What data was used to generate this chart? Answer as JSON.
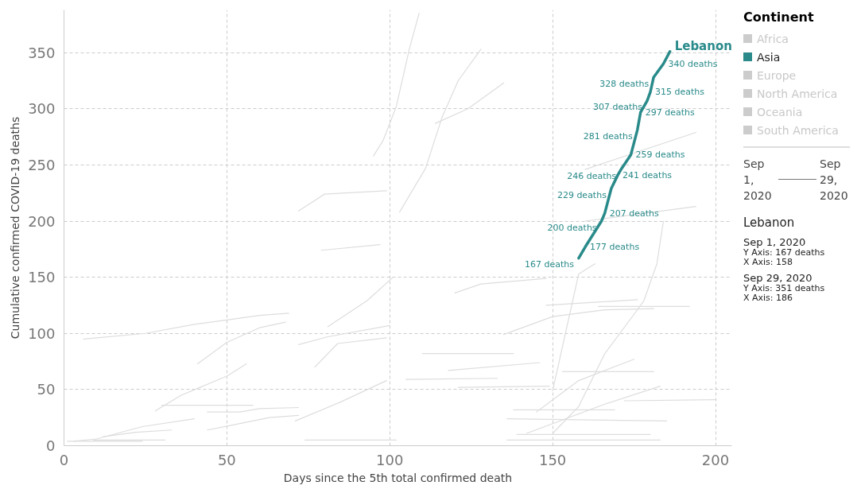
{
  "chart_data": {
    "type": "line",
    "xlabel": "Days since the 5th total confirmed death",
    "ylabel": "Cumulative confirmed COVID-19 deaths",
    "legend_title": "Continent",
    "xlim": [
      0,
      205
    ],
    "ylim": [
      0,
      388
    ],
    "xticks": [
      0,
      50,
      100,
      150,
      200
    ],
    "yticks": [
      0,
      50,
      100,
      150,
      200,
      250,
      300,
      350
    ],
    "grid": true,
    "legend": "right",
    "series": [
      {
        "color": "#dddddd",
        "x": [
          6,
          25,
          40,
          50,
          60,
          69
        ],
        "values": [
          95,
          100,
          108,
          112,
          116,
          118
        ]
      },
      {
        "color": "#dddddd",
        "x": [
          41,
          50,
          60,
          68
        ],
        "values": [
          73,
          92,
          105,
          110
        ]
      },
      {
        "color": "#dddddd",
        "x": [
          28,
          36,
          50,
          56
        ],
        "values": [
          31,
          45,
          62,
          73
        ]
      },
      {
        "color": "#dddddd",
        "x": [
          30,
          58
        ],
        "values": [
          36,
          36
        ]
      },
      {
        "color": "#dddddd",
        "x": [
          44,
          54,
          60,
          72
        ],
        "values": [
          30,
          30,
          33,
          34
        ]
      },
      {
        "color": "#dddddd",
        "x": [
          44,
          51,
          63,
          72
        ],
        "values": [
          14,
          18,
          25,
          27
        ]
      },
      {
        "color": "#dddddd",
        "x": [
          3,
          10,
          24,
          40
        ],
        "values": [
          4,
          6,
          17,
          24
        ]
      },
      {
        "color": "#dddddd",
        "x": [
          12,
          22,
          33
        ],
        "values": [
          8,
          12,
          14
        ]
      },
      {
        "color": "#dddddd",
        "x": [
          1,
          24
        ],
        "values": [
          4,
          4
        ]
      },
      {
        "color": "#dddddd",
        "x": [
          9,
          31
        ],
        "values": [
          5,
          5
        ]
      },
      {
        "color": "#dddddd",
        "x": [
          72,
          81,
          100
        ],
        "values": [
          90,
          97,
          107
        ]
      },
      {
        "color": "#dddddd",
        "x": [
          77,
          84,
          99
        ],
        "values": [
          70,
          91,
          96
        ]
      },
      {
        "color": "#dddddd",
        "x": [
          81,
          93,
          101
        ],
        "values": [
          106,
          129,
          150
        ]
      },
      {
        "color": "#dddddd",
        "x": [
          79,
          97
        ],
        "values": [
          174,
          179
        ]
      },
      {
        "color": "#dddddd",
        "x": [
          71,
          85,
          99
        ],
        "values": [
          22,
          39,
          58
        ]
      },
      {
        "color": "#dddddd",
        "x": [
          74,
          102
        ],
        "values": [
          5,
          5
        ]
      },
      {
        "color": "#dddddd",
        "x": [
          95,
          98,
          102,
          106,
          109
        ],
        "values": [
          258,
          272,
          302,
          353,
          385
        ]
      },
      {
        "color": "#dddddd",
        "x": [
          103,
          111,
          116,
          121,
          128
        ],
        "values": [
          208,
          247,
          292,
          325,
          353
        ]
      },
      {
        "color": "#dddddd",
        "x": [
          72,
          80,
          99
        ],
        "values": [
          209,
          224,
          227
        ]
      },
      {
        "color": "#dddddd",
        "x": [
          114,
          124,
          135
        ],
        "values": [
          287,
          300,
          323
        ]
      },
      {
        "color": "#dddddd",
        "x": [
          120,
          128,
          148
        ],
        "values": [
          136,
          144,
          149
        ]
      },
      {
        "color": "#dddddd",
        "x": [
          148,
          176
        ],
        "values": [
          125,
          130
        ]
      },
      {
        "color": "#dddddd",
        "x": [
          164,
          192
        ],
        "values": [
          124,
          124
        ]
      },
      {
        "color": "#dddddd",
        "x": [
          135,
          150,
          166,
          181
        ],
        "values": [
          99,
          115,
          121,
          122
        ]
      },
      {
        "color": "#dddddd",
        "x": [
          110,
          138
        ],
        "values": [
          82,
          82
        ]
      },
      {
        "color": "#dddddd",
        "x": [
          118,
          146
        ],
        "values": [
          67,
          74
        ]
      },
      {
        "color": "#dddddd",
        "x": [
          105,
          133
        ],
        "values": [
          59,
          60
        ]
      },
      {
        "color": "#dddddd",
        "x": [
          121,
          149
        ],
        "values": [
          52,
          53
        ]
      },
      {
        "color": "#dddddd",
        "x": [
          150,
          158,
          166,
          175,
          178,
          182,
          184
        ],
        "values": [
          11,
          35,
          82,
          117,
          129,
          162,
          200
        ]
      },
      {
        "color": "#dddddd",
        "x": [
          150,
          158,
          163
        ],
        "values": [
          49,
          153,
          162
        ]
      },
      {
        "color": "#dddddd",
        "x": [
          136,
          183
        ],
        "values": [
          5,
          5
        ]
      },
      {
        "color": "#dddddd",
        "x": [
          139,
          180
        ],
        "values": [
          10,
          10
        ]
      },
      {
        "color": "#dddddd",
        "x": [
          136,
          185
        ],
        "values": [
          24,
          22
        ]
      },
      {
        "color": "#dddddd",
        "x": [
          138,
          169
        ],
        "values": [
          32,
          32
        ]
      },
      {
        "color": "#dddddd",
        "x": [
          153,
          181
        ],
        "values": [
          66,
          66
        ]
      },
      {
        "color": "#dddddd",
        "x": [
          172,
          200
        ],
        "values": [
          40,
          41
        ]
      },
      {
        "color": "#dddddd",
        "x": [
          142,
          166,
          183
        ],
        "values": [
          11,
          37,
          53
        ]
      },
      {
        "color": "#dddddd",
        "x": [
          145,
          158,
          175
        ],
        "values": [
          30,
          58,
          77
        ]
      },
      {
        "color": "#dddddd",
        "x": [
          160,
          194
        ],
        "values": [
          200,
          213
        ]
      },
      {
        "color": "#dddddd",
        "x": [
          160,
          194
        ],
        "values": [
          246,
          279
        ]
      },
      {
        "name": "Lebanon",
        "color": "#2a8a8a",
        "x": [
          158,
          160,
          165,
          166,
          168,
          170,
          171,
          174,
          176,
          177,
          179,
          180,
          181,
          184,
          186
        ],
        "values": [
          167,
          177,
          200,
          207,
          229,
          241,
          246,
          259,
          281,
          297,
          307,
          315,
          328,
          340,
          351
        ],
        "value_labels": [
          "167 deaths",
          "177 deaths",
          "200 deaths",
          "207 deaths",
          "229 deaths",
          "241 deaths",
          "246 deaths",
          "259 deaths",
          "281 deaths",
          "297 deaths",
          "307 deaths",
          "315 deaths",
          "328 deaths",
          "340 deaths",
          null
        ]
      }
    ],
    "annotations": [
      "Africa",
      "Asia",
      "Europe",
      "North America",
      "Oceania",
      "South America",
      "Sep 1, 2020",
      "Sep 29, 2020",
      "Lebanon",
      "Sep 1, 2020",
      "Y Axis: 167 deaths",
      "X Axis: 158",
      "Sep 29, 2020",
      "Y Axis: 351 deaths",
      "X Axis: 186"
    ]
  }
}
